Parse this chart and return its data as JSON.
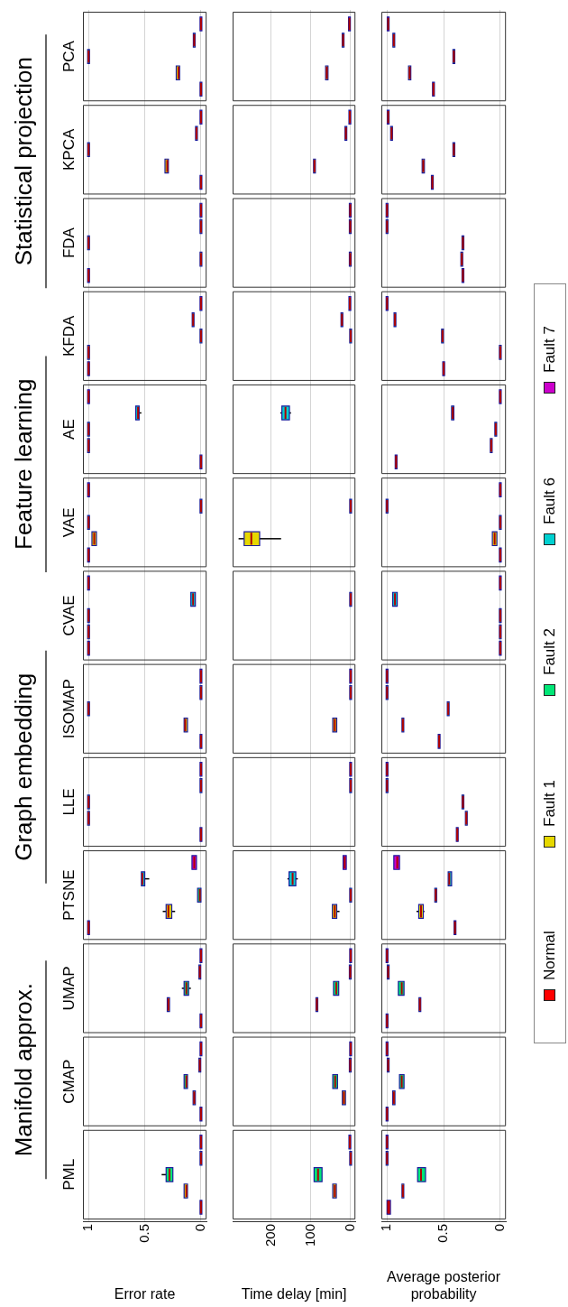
{
  "chart_data": [
    {
      "type": "box",
      "orientation": "horizontal",
      "xlabel": "Error rate",
      "xlim": [
        1.05,
        -0.05
      ],
      "xticks": [
        1,
        0.5,
        0
      ],
      "grid": "x",
      "categories": [
        "PCA",
        "KPCA",
        "FDA",
        "KFDA",
        "AE",
        "VAE",
        "CVAE",
        "ISOMAP",
        "LLE",
        "PTSNE",
        "UMAP",
        "CMAP",
        "PML"
      ],
      "annotations": [
        "Statistical projection",
        "Feature learning",
        "Graph embedding",
        "Manifold approx."
      ],
      "series": [
        {
          "color": "#ff0000",
          "boxes": [
            {
              "low": 0,
              "q1": 0,
              "median": 0,
              "q3": 0,
              "high": 0
            },
            {
              "low": 0,
              "q1": 0,
              "median": 0,
              "q3": 0,
              "high": 0
            },
            {
              "low": 1,
              "q1": 1,
              "median": 1,
              "q3": 1,
              "high": 1
            },
            {
              "low": 1,
              "q1": 1,
              "median": 1,
              "q3": 1,
              "high": 1
            },
            {
              "low": 0,
              "q1": 0,
              "median": 0,
              "q3": 0,
              "high": 0
            },
            {
              "low": 1,
              "q1": 1,
              "median": 1,
              "q3": 1,
              "high": 1
            },
            {
              "low": 1,
              "q1": 1,
              "median": 1,
              "q3": 1,
              "high": 1
            },
            {
              "low": 0,
              "q1": 0,
              "median": 0,
              "q3": 0,
              "high": 0
            },
            {
              "low": 0,
              "q1": 0,
              "median": 0,
              "q3": 0,
              "high": 0
            },
            {
              "low": 1,
              "q1": 1,
              "median": 1,
              "q3": 1,
              "high": 1
            },
            {
              "low": 0,
              "q1": 0,
              "median": 0,
              "q3": 0,
              "high": 0
            },
            {
              "low": 0,
              "q1": 0,
              "median": 0,
              "q3": 0,
              "high": 0
            },
            {
              "low": 0,
              "q1": 0,
              "median": 0,
              "q3": 0,
              "high": 0
            }
          ]
        },
        {
          "color": "#e6d800",
          "boxes": [
            {
              "low": 0.19,
              "q1": 0.19,
              "median": 0.2,
              "q3": 0.22,
              "high": 0.22
            },
            {
              "low": 0.29,
              "q1": 0.29,
              "median": 0.3,
              "q3": 0.32,
              "high": 0.32
            },
            {
              "low": 0,
              "q1": 0,
              "median": 0,
              "q3": 0,
              "high": 0
            },
            {
              "low": 1,
              "q1": 1,
              "median": 1,
              "q3": 1,
              "high": 1
            },
            {
              "low": 1,
              "q1": 1,
              "median": 1,
              "q3": 1,
              "high": 1
            },
            {
              "low": 0.93,
              "q1": 0.93,
              "median": 0.95,
              "q3": 0.97,
              "high": 0.97
            },
            {
              "low": 1,
              "q1": 1,
              "median": 1,
              "q3": 1,
              "high": 1
            },
            {
              "low": 0.12,
              "q1": 0.12,
              "median": 0.14,
              "q3": 0.15,
              "high": 0.15
            },
            {
              "low": 1,
              "q1": 1,
              "median": 1,
              "q3": 1,
              "high": 1
            },
            {
              "low": 0.23,
              "q1": 0.26,
              "median": 0.29,
              "q3": 0.31,
              "high": 0.34
            },
            {
              "low": 0.28,
              "q1": 0.28,
              "median": 0.29,
              "q3": 0.3,
              "high": 0.3
            },
            {
              "low": 0.05,
              "q1": 0.05,
              "median": 0.06,
              "q3": 0.07,
              "high": 0.07
            },
            {
              "low": 0.12,
              "q1": 0.12,
              "median": 0.13,
              "q3": 0.15,
              "high": 0.15
            }
          ]
        },
        {
          "color": "#00e676",
          "boxes": [
            {
              "low": 1,
              "q1": 1,
              "median": 1,
              "q3": 1,
              "high": 1
            },
            {
              "low": 1,
              "q1": 1,
              "median": 1,
              "q3": 1,
              "high": 1
            },
            {
              "low": 1,
              "q1": 1,
              "median": 1,
              "q3": 1,
              "high": 1
            },
            {
              "low": 0,
              "q1": 0,
              "median": 0,
              "q3": 0,
              "high": 0
            },
            {
              "low": 1,
              "q1": 1,
              "median": 1,
              "q3": 1,
              "high": 1
            },
            {
              "low": 1,
              "q1": 1,
              "median": 1,
              "q3": 1,
              "high": 1
            },
            {
              "low": 1,
              "q1": 1,
              "median": 1,
              "q3": 1,
              "high": 1
            },
            {
              "low": 1,
              "q1": 1,
              "median": 1,
              "q3": 1,
              "high": 1
            },
            {
              "low": 1,
              "q1": 1,
              "median": 1,
              "q3": 1,
              "high": 1
            },
            {
              "low": 0,
              "q1": 0,
              "median": 0.01,
              "q3": 0.03,
              "high": 0.03
            },
            {
              "low": 0.09,
              "q1": 0.11,
              "median": 0.13,
              "q3": 0.15,
              "high": 0.17
            },
            {
              "low": 0.12,
              "q1": 0.12,
              "median": 0.13,
              "q3": 0.15,
              "high": 0.15
            },
            {
              "low": 0.25,
              "q1": 0.25,
              "median": 0.28,
              "q3": 0.31,
              "high": 0.35
            }
          ]
        },
        {
          "color": "#00d0d0",
          "boxes": [
            {
              "low": 0.06,
              "q1": 0.06,
              "median": 0.06,
              "q3": 0.06,
              "high": 0.06
            },
            {
              "low": 0.04,
              "q1": 0.04,
              "median": 0.04,
              "q3": 0.04,
              "high": 0.04
            },
            {
              "low": 0,
              "q1": 0,
              "median": 0,
              "q3": 0,
              "high": 0
            },
            {
              "low": 0.07,
              "q1": 0.07,
              "median": 0.07,
              "q3": 0.07,
              "high": 0.07
            },
            {
              "low": 0.53,
              "q1": 0.55,
              "median": 0.56,
              "q3": 0.58,
              "high": 0.58
            },
            {
              "low": 0,
              "q1": 0,
              "median": 0,
              "q3": 0,
              "high": 0
            },
            {
              "low": 0.05,
              "q1": 0.05,
              "median": 0.07,
              "q3": 0.09,
              "high": 0.09
            },
            {
              "low": 0,
              "q1": 0,
              "median": 0,
              "q3": 0,
              "high": 0
            },
            {
              "low": 0,
              "q1": 0,
              "median": 0,
              "q3": 0,
              "high": 0
            },
            {
              "low": 0.46,
              "q1": 0.5,
              "median": 0.52,
              "q3": 0.53,
              "high": 0.53
            },
            {
              "low": 0.01,
              "q1": 0.01,
              "median": 0.01,
              "q3": 0.01,
              "high": 0.01
            },
            {
              "low": 0.01,
              "q1": 0.01,
              "median": 0.01,
              "q3": 0.01,
              "high": 0.01
            },
            {
              "low": 0,
              "q1": 0,
              "median": 0,
              "q3": 0,
              "high": 0
            }
          ]
        },
        {
          "color": "#cc00cc",
          "boxes": [
            {
              "low": 0,
              "q1": 0,
              "median": 0,
              "q3": 0,
              "high": 0
            },
            {
              "low": 0,
              "q1": 0,
              "median": 0,
              "q3": 0,
              "high": 0
            },
            {
              "low": 0,
              "q1": 0,
              "median": 0,
              "q3": 0,
              "high": 0
            },
            {
              "low": 0,
              "q1": 0,
              "median": 0,
              "q3": 0,
              "high": 0
            },
            {
              "low": 1,
              "q1": 1,
              "median": 1,
              "q3": 1,
              "high": 1
            },
            {
              "low": 1,
              "q1": 1,
              "median": 1,
              "q3": 1,
              "high": 1
            },
            {
              "low": 1,
              "q1": 1,
              "median": 1,
              "q3": 1,
              "high": 1
            },
            {
              "low": 0,
              "q1": 0,
              "median": 0,
              "q3": 0,
              "high": 0
            },
            {
              "low": 0,
              "q1": 0,
              "median": 0,
              "q3": 0,
              "high": 0
            },
            {
              "low": 0.04,
              "q1": 0.04,
              "median": 0.06,
              "q3": 0.08,
              "high": 0.08
            },
            {
              "low": 0,
              "q1": 0,
              "median": 0,
              "q3": 0,
              "high": 0
            },
            {
              "low": 0,
              "q1": 0,
              "median": 0,
              "q3": 0,
              "high": 0
            },
            {
              "low": 0,
              "q1": 0,
              "median": 0,
              "q3": 0,
              "high": 0
            }
          ]
        }
      ]
    },
    {
      "type": "box",
      "orientation": "horizontal",
      "xlabel": "Time delay [min]",
      "xlim": [
        297,
        -12
      ],
      "xticks": [
        200,
        100,
        0
      ],
      "grid": "x",
      "tick_labels": "x",
      "categories": [
        null,
        null,
        null,
        null,
        null,
        null,
        null,
        null,
        null,
        null,
        null,
        null,
        null
      ],
      "series": [
        {
          "boxes": [
            null,
            null,
            null,
            null,
            null,
            null,
            null,
            null,
            null,
            null,
            null,
            null,
            null
          ]
        },
        {
          "color": "#e6d800",
          "boxes": [
            {
              "low": 57,
              "q1": 57,
              "median": 60,
              "q3": 63,
              "high": 63
            },
            {
              "low": 89,
              "q1": 89,
              "median": 91,
              "q3": 93,
              "high": 93
            },
            {
              "low": 1,
              "q1": 1,
              "median": 1,
              "q3": 1,
              "high": 1
            },
            null,
            null,
            {
              "low": 175,
              "q1": 229,
              "median": 250,
              "q3": 268,
              "high": 282
            },
            null,
            {
              "low": 35,
              "q1": 35,
              "median": 40,
              "q3": 45,
              "high": 45
            },
            null,
            {
              "low": 28,
              "q1": 35,
              "median": 40,
              "q3": 46,
              "high": 46
            },
            {
              "low": 83,
              "q1": 83,
              "median": 85,
              "q3": 87,
              "high": 87
            },
            {
              "low": 13,
              "q1": 13,
              "median": 17,
              "q3": 21,
              "high": 21
            },
            {
              "low": 36,
              "q1": 36,
              "median": 40,
              "q3": 45,
              "high": 45
            }
          ]
        },
        {
          "color": "#00e676",
          "boxes": [
            null,
            null,
            null,
            {
              "low": 0,
              "q1": 0,
              "median": 0,
              "q3": 0,
              "high": 0
            },
            null,
            null,
            null,
            null,
            null,
            {
              "low": 0,
              "q1": 0,
              "median": 0,
              "q3": 0,
              "high": 0
            },
            {
              "low": 30,
              "q1": 30,
              "median": 36,
              "q3": 43,
              "high": 43
            },
            {
              "low": 33,
              "q1": 33,
              "median": 39,
              "q3": 45,
              "high": 45
            },
            {
              "low": 72,
              "q1": 72,
              "median": 82,
              "q3": 92,
              "high": 92
            }
          ]
        },
        {
          "color": "#00d0d0",
          "boxes": [
            {
              "low": 17,
              "q1": 17,
              "median": 19,
              "q3": 21,
              "high": 21
            },
            {
              "low": 12,
              "q1": 12,
              "median": 12,
              "q3": 12,
              "high": 12
            },
            {
              "low": 1,
              "q1": 1,
              "median": 1,
              "q3": 1,
              "high": 1
            },
            {
              "low": 22,
              "q1": 22,
              "median": 22,
              "q3": 22,
              "high": 22
            },
            {
              "low": 150,
              "q1": 154,
              "median": 164,
              "q3": 173,
              "high": 177
            },
            {
              "low": 0,
              "q1": 0,
              "median": 0,
              "q3": 0,
              "high": 0
            },
            {
              "low": 0,
              "q1": 0,
              "median": 0,
              "q3": 0,
              "high": 0
            },
            {
              "low": 0,
              "q1": 0,
              "median": 0,
              "q3": 0,
              "high": 0
            },
            {
              "low": 0,
              "q1": 0,
              "median": 0,
              "q3": 0,
              "high": 0
            },
            {
              "low": 133,
              "q1": 138,
              "median": 146,
              "q3": 155,
              "high": 159
            },
            {
              "low": 1,
              "q1": 1,
              "median": 1,
              "q3": 1,
              "high": 1
            },
            {
              "low": 1,
              "q1": 1,
              "median": 1,
              "q3": 1,
              "high": 1
            },
            {
              "low": 0,
              "q1": 0,
              "median": 0,
              "q3": 0,
              "high": 0
            }
          ]
        },
        {
          "color": "#cc00cc",
          "boxes": [
            {
              "low": 3,
              "q1": 3,
              "median": 3,
              "q3": 3,
              "high": 3
            },
            {
              "low": 2,
              "q1": 2,
              "median": 2,
              "q3": 2,
              "high": 2
            },
            {
              "low": 1,
              "q1": 1,
              "median": 1,
              "q3": 1,
              "high": 1
            },
            {
              "low": 2,
              "q1": 2,
              "median": 2,
              "q3": 2,
              "high": 2
            },
            null,
            null,
            null,
            {
              "low": 0,
              "q1": 0,
              "median": 0,
              "q3": 0,
              "high": 0
            },
            {
              "low": 0,
              "q1": 0,
              "median": 0,
              "q3": 0,
              "high": 0
            },
            {
              "low": 11,
              "q1": 11,
              "median": 15,
              "q3": 19,
              "high": 19
            },
            {
              "low": 0,
              "q1": 0,
              "median": 0,
              "q3": 0,
              "high": 0
            },
            {
              "low": 0,
              "q1": 0,
              "median": 0,
              "q3": 0,
              "high": 0
            },
            {
              "low": 2,
              "q1": 2,
              "median": 2,
              "q3": 2,
              "high": 2
            }
          ]
        }
      ]
    },
    {
      "type": "box",
      "orientation": "horizontal",
      "xlabel": "Average posterior probability",
      "xlim": [
        1.05,
        -0.05
      ],
      "xticks": [
        1,
        0.5,
        0
      ],
      "grid": "x",
      "tick_labels": "x",
      "legend": "right",
      "categories": [
        null,
        null,
        null,
        null,
        null,
        null,
        null,
        null,
        null,
        null,
        null,
        null,
        null
      ],
      "series": [
        {
          "name": "Normal",
          "color": "#ff0000",
          "boxes": [
            {
              "low": 0.59,
              "q1": 0.59,
              "median": 0.59,
              "q3": 0.59,
              "high": 0.59
            },
            {
              "low": 0.6,
              "q1": 0.6,
              "median": 0.6,
              "q3": 0.6,
              "high": 0.6
            },
            {
              "low": 0.33,
              "q1": 0.33,
              "median": 0.33,
              "q3": 0.33,
              "high": 0.33
            },
            {
              "low": 0.5,
              "q1": 0.5,
              "median": 0.5,
              "q3": 0.5,
              "high": 0.5
            },
            {
              "low": 0.92,
              "q1": 0.92,
              "median": 0.92,
              "q3": 0.92,
              "high": 0.92
            },
            {
              "low": 0,
              "q1": 0,
              "median": 0,
              "q3": 0,
              "high": 0
            },
            {
              "low": 0,
              "q1": 0,
              "median": 0,
              "q3": 0,
              "high": 0
            },
            {
              "low": 0.54,
              "q1": 0.54,
              "median": 0.54,
              "q3": 0.54,
              "high": 0.54
            },
            {
              "low": 0.38,
              "q1": 0.38,
              "median": 0.38,
              "q3": 0.38,
              "high": 0.38
            },
            {
              "low": 0.4,
              "q1": 0.4,
              "median": 0.4,
              "q3": 0.4,
              "high": 0.4
            },
            {
              "low": 1,
              "q1": 1,
              "median": 1,
              "q3": 1,
              "high": 1
            },
            {
              "low": 1,
              "q1": 1,
              "median": 1,
              "q3": 1,
              "high": 1
            },
            {
              "low": 0.97,
              "q1": 0.97,
              "median": 0.99,
              "q3": 1,
              "high": 1
            }
          ]
        },
        {
          "name": "Fault 1",
          "color": "#e6d800",
          "boxes": [
            {
              "low": 0.79,
              "q1": 0.79,
              "median": 0.8,
              "q3": 0.81,
              "high": 0.81
            },
            {
              "low": 0.67,
              "q1": 0.67,
              "median": 0.68,
              "q3": 0.69,
              "high": 0.69
            },
            {
              "low": 0.34,
              "q1": 0.34,
              "median": 0.34,
              "q3": 0.34,
              "high": 0.34
            },
            {
              "low": 0,
              "q1": 0,
              "median": 0,
              "q3": 0,
              "high": 0
            },
            {
              "low": 0.08,
              "q1": 0.08,
              "median": 0.08,
              "q3": 0.08,
              "high": 0.08
            },
            {
              "low": 0.03,
              "q1": 0.03,
              "median": 0.05,
              "q3": 0.07,
              "high": 0.07
            },
            {
              "low": 0,
              "q1": 0,
              "median": 0,
              "q3": 0,
              "high": 0
            },
            {
              "low": 0.86,
              "q1": 0.86,
              "median": 0.86,
              "q3": 0.86,
              "high": 0.86
            },
            {
              "low": 0.3,
              "q1": 0.3,
              "median": 0.3,
              "q3": 0.3,
              "high": 0.3
            },
            {
              "low": 0.67,
              "q1": 0.68,
              "median": 0.7,
              "q3": 0.72,
              "high": 0.74
            },
            {
              "low": 0.71,
              "q1": 0.71,
              "median": 0.71,
              "q3": 0.71,
              "high": 0.71
            },
            {
              "low": 0.93,
              "q1": 0.93,
              "median": 0.94,
              "q3": 0.95,
              "high": 0.95
            },
            {
              "low": 0.86,
              "q1": 0.86,
              "median": 0.86,
              "q3": 0.86,
              "high": 0.86
            }
          ]
        },
        {
          "name": "Fault 2",
          "color": "#00e676",
          "boxes": [
            {
              "low": 0.41,
              "q1": 0.41,
              "median": 0.41,
              "q3": 0.41,
              "high": 0.41
            },
            {
              "low": 0.41,
              "q1": 0.41,
              "median": 0.41,
              "q3": 0.41,
              "high": 0.41
            },
            {
              "low": 0.33,
              "q1": 0.33,
              "median": 0.33,
              "q3": 0.33,
              "high": 0.33
            },
            {
              "low": 0.51,
              "q1": 0.51,
              "median": 0.51,
              "q3": 0.51,
              "high": 0.51
            },
            {
              "low": 0.04,
              "q1": 0.04,
              "median": 0.04,
              "q3": 0.04,
              "high": 0.04
            },
            {
              "low": 0,
              "q1": 0,
              "median": 0,
              "q3": 0,
              "high": 0
            },
            {
              "low": 0,
              "q1": 0,
              "median": 0,
              "q3": 0,
              "high": 0
            },
            {
              "low": 0.46,
              "q1": 0.46,
              "median": 0.46,
              "q3": 0.46,
              "high": 0.46
            },
            {
              "low": 0.33,
              "q1": 0.33,
              "median": 0.33,
              "q3": 0.33,
              "high": 0.33
            },
            {
              "low": 0.57,
              "q1": 0.57,
              "median": 0.57,
              "q3": 0.57,
              "high": 0.57
            },
            {
              "low": 0.85,
              "q1": 0.85,
              "median": 0.87,
              "q3": 0.9,
              "high": 0.9
            },
            {
              "low": 0.85,
              "q1": 0.85,
              "median": 0.87,
              "q3": 0.89,
              "high": 0.89
            },
            {
              "low": 0.66,
              "q1": 0.66,
              "median": 0.7,
              "q3": 0.73,
              "high": 0.73
            }
          ]
        },
        {
          "name": "Fault 6",
          "color": "#00d0d0",
          "boxes": [
            {
              "low": 0.94,
              "q1": 0.94,
              "median": 0.94,
              "q3": 0.94,
              "high": 0.94
            },
            {
              "low": 0.96,
              "q1": 0.96,
              "median": 0.96,
              "q3": 0.96,
              "high": 0.96
            },
            {
              "low": 1,
              "q1": 1,
              "median": 1,
              "q3": 1,
              "high": 1
            },
            {
              "low": 0.93,
              "q1": 0.93,
              "median": 0.93,
              "q3": 0.93,
              "high": 0.93
            },
            {
              "low": 0.41,
              "q1": 0.41,
              "median": 0.42,
              "q3": 0.43,
              "high": 0.43
            },
            {
              "low": 1,
              "q1": 1,
              "median": 1,
              "q3": 1,
              "high": 1
            },
            {
              "low": 0.91,
              "q1": 0.91,
              "median": 0.93,
              "q3": 0.95,
              "high": 0.95
            },
            {
              "low": 1,
              "q1": 1,
              "median": 1,
              "q3": 1,
              "high": 1
            },
            {
              "low": 1,
              "q1": 1,
              "median": 1,
              "q3": 1,
              "high": 1
            },
            {
              "low": 0.43,
              "q1": 0.43,
              "median": 0.45,
              "q3": 0.46,
              "high": 0.46
            },
            {
              "low": 0.99,
              "q1": 0.99,
              "median": 0.99,
              "q3": 0.99,
              "high": 0.99
            },
            {
              "low": 0.99,
              "q1": 0.99,
              "median": 0.99,
              "q3": 0.99,
              "high": 0.99
            },
            {
              "low": 1,
              "q1": 1,
              "median": 1,
              "q3": 1,
              "high": 1
            }
          ]
        },
        {
          "name": "Fault 7",
          "color": "#cc00cc",
          "boxes": [
            {
              "low": 0.99,
              "q1": 0.99,
              "median": 0.99,
              "q3": 0.99,
              "high": 0.99
            },
            {
              "low": 0.99,
              "q1": 0.99,
              "median": 0.99,
              "q3": 0.99,
              "high": 0.99
            },
            {
              "low": 1,
              "q1": 1,
              "median": 1,
              "q3": 1,
              "high": 1
            },
            {
              "low": 1,
              "q1": 1,
              "median": 1,
              "q3": 1,
              "high": 1
            },
            {
              "low": 0,
              "q1": 0,
              "median": 0,
              "q3": 0,
              "high": 0
            },
            {
              "low": 0,
              "q1": 0,
              "median": 0,
              "q3": 0,
              "high": 0
            },
            {
              "low": 0,
              "q1": 0,
              "median": 0,
              "q3": 0,
              "high": 0
            },
            {
              "low": 1,
              "q1": 1,
              "median": 1,
              "q3": 1,
              "high": 1
            },
            {
              "low": 1,
              "q1": 1,
              "median": 1,
              "q3": 1,
              "high": 1
            },
            {
              "low": 0.89,
              "q1": 0.89,
              "median": 0.91,
              "q3": 0.94,
              "high": 0.94
            },
            {
              "low": 1,
              "q1": 1,
              "median": 1,
              "q3": 1,
              "high": 1
            },
            {
              "low": 1,
              "q1": 1,
              "median": 1,
              "q3": 1,
              "high": 1
            },
            {
              "low": 1,
              "q1": 1,
              "median": 1,
              "q3": 1,
              "high": 1
            }
          ]
        }
      ]
    }
  ]
}
